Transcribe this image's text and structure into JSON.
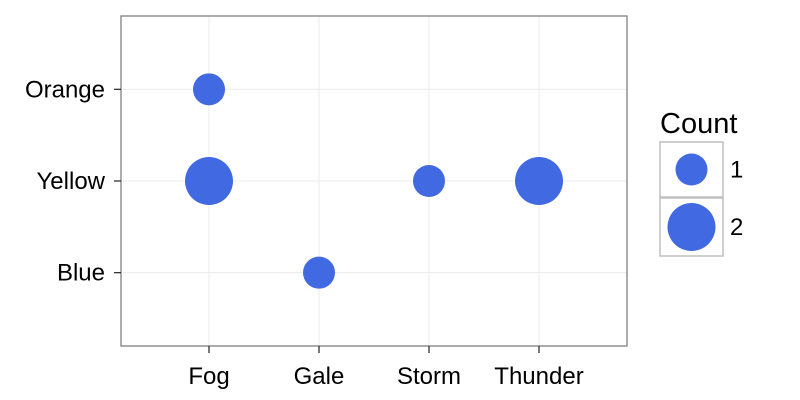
{
  "chart_data": {
    "type": "scatter",
    "x_categories": [
      "Fog",
      "Gale",
      "Storm",
      "Thunder"
    ],
    "y_categories": [
      "Blue",
      "Yellow",
      "Orange"
    ],
    "points": [
      {
        "x": "Fog",
        "y": "Orange",
        "count": 1
      },
      {
        "x": "Fog",
        "y": "Yellow",
        "count": 2
      },
      {
        "x": "Gale",
        "y": "Blue",
        "count": 1
      },
      {
        "x": "Storm",
        "y": "Yellow",
        "count": 1
      },
      {
        "x": "Thunder",
        "y": "Yellow",
        "count": 2
      }
    ],
    "point_color": "#4169E1",
    "grid": true,
    "legend": {
      "title": "Count",
      "placement": "right",
      "entries": [
        {
          "label": "1",
          "count": 1
        },
        {
          "label": "2",
          "count": 2
        }
      ]
    }
  }
}
